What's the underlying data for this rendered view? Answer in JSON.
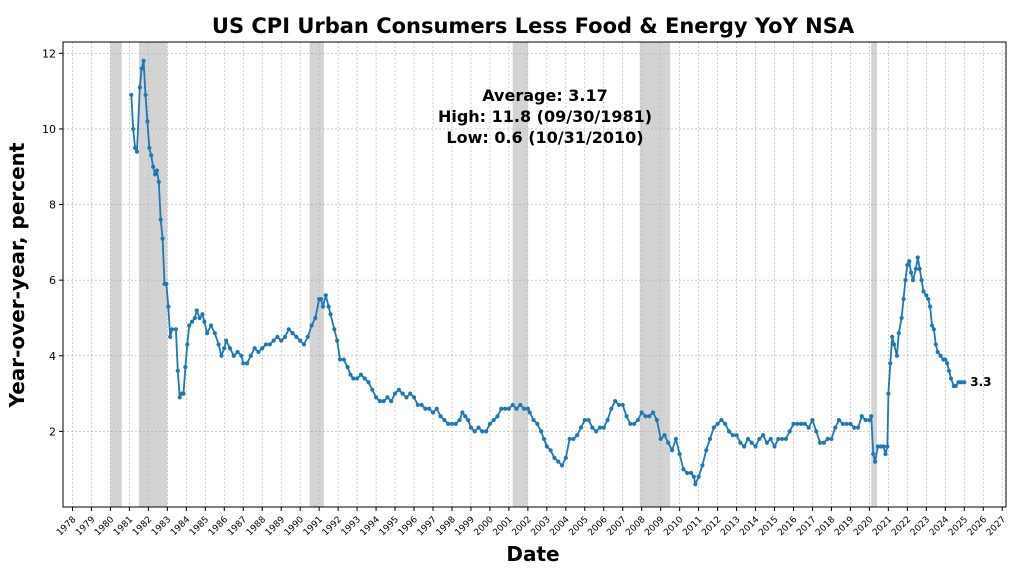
{
  "chart_data": {
    "type": "line",
    "title": "US CPI Urban Consumers Less Food & Energy YoY NSA",
    "xlabel": "Date",
    "ylabel": "Year-over-year, percent",
    "xlim": [
      1977.5,
      2027.2
    ],
    "ylim": [
      0,
      12.3
    ],
    "yticks": [
      2,
      4,
      6,
      8,
      10,
      12
    ],
    "xticks": [
      1978,
      1979,
      1980,
      1981,
      1982,
      1983,
      1984,
      1985,
      1986,
      1987,
      1988,
      1989,
      1990,
      1991,
      1992,
      1993,
      1994,
      1995,
      1996,
      1997,
      1998,
      1999,
      2000,
      2001,
      2002,
      2003,
      2004,
      2005,
      2006,
      2007,
      2008,
      2009,
      2010,
      2011,
      2012,
      2013,
      2014,
      2015,
      2016,
      2017,
      2018,
      2019,
      2020,
      2021,
      2022,
      2023,
      2024,
      2025,
      2026,
      2027
    ],
    "grid": true,
    "line_color": "#1f77b4",
    "recession_color": "#d3d3d3",
    "recessions": [
      [
        1980.0,
        1980.6
      ],
      [
        1981.5,
        1983.0
      ],
      [
        1990.5,
        1991.25
      ],
      [
        2001.2,
        2002.0
      ],
      [
        2007.9,
        2009.5
      ],
      [
        2020.1,
        2020.4
      ]
    ],
    "annotation": {
      "line1": "Average: 3.17",
      "line2": "High: 11.8 (09/30/1981)",
      "line3": "Low: 0.6 (10/31/2010)"
    },
    "last_value_label": "3.3",
    "series": [
      {
        "points": [
          [
            1981.1,
            10.9
          ],
          [
            1981.2,
            10.0
          ],
          [
            1981.3,
            9.5
          ],
          [
            1981.4,
            9.4
          ],
          [
            1981.55,
            11.1
          ],
          [
            1981.65,
            11.6
          ],
          [
            1981.75,
            11.8
          ],
          [
            1981.85,
            10.9
          ],
          [
            1981.95,
            10.2
          ],
          [
            1982.05,
            9.5
          ],
          [
            1982.15,
            9.3
          ],
          [
            1982.25,
            9.0
          ],
          [
            1982.35,
            8.8
          ],
          [
            1982.45,
            8.9
          ],
          [
            1982.55,
            8.6
          ],
          [
            1982.65,
            7.6
          ],
          [
            1982.75,
            7.1
          ],
          [
            1982.85,
            5.9
          ],
          [
            1982.95,
            5.9
          ],
          [
            1983.05,
            5.3
          ],
          [
            1983.15,
            4.5
          ],
          [
            1983.25,
            4.7
          ],
          [
            1983.45,
            4.7
          ],
          [
            1983.55,
            3.6
          ],
          [
            1983.65,
            2.9
          ],
          [
            1983.75,
            3.0
          ],
          [
            1983.85,
            3.0
          ],
          [
            1983.95,
            3.7
          ],
          [
            1984.05,
            4.3
          ],
          [
            1984.15,
            4.8
          ],
          [
            1984.3,
            4.9
          ],
          [
            1984.45,
            5.0
          ],
          [
            1984.55,
            5.2
          ],
          [
            1984.7,
            5.0
          ],
          [
            1984.85,
            5.1
          ],
          [
            1984.95,
            4.9
          ],
          [
            1985.1,
            4.6
          ],
          [
            1985.3,
            4.8
          ],
          [
            1985.5,
            4.6
          ],
          [
            1985.7,
            4.3
          ],
          [
            1985.85,
            4.0
          ],
          [
            1986.0,
            4.2
          ],
          [
            1986.1,
            4.4
          ],
          [
            1986.3,
            4.2
          ],
          [
            1986.5,
            4.0
          ],
          [
            1986.7,
            4.1
          ],
          [
            1986.9,
            4.0
          ],
          [
            1987.0,
            3.8
          ],
          [
            1987.2,
            3.8
          ],
          [
            1987.4,
            4.0
          ],
          [
            1987.6,
            4.2
          ],
          [
            1987.8,
            4.1
          ],
          [
            1988.0,
            4.2
          ],
          [
            1988.2,
            4.3
          ],
          [
            1988.4,
            4.3
          ],
          [
            1988.6,
            4.4
          ],
          [
            1988.8,
            4.5
          ],
          [
            1989.0,
            4.4
          ],
          [
            1989.2,
            4.5
          ],
          [
            1989.4,
            4.7
          ],
          [
            1989.6,
            4.6
          ],
          [
            1989.8,
            4.5
          ],
          [
            1990.0,
            4.4
          ],
          [
            1990.2,
            4.3
          ],
          [
            1990.4,
            4.5
          ],
          [
            1990.6,
            4.8
          ],
          [
            1990.8,
            5.0
          ],
          [
            1991.0,
            5.5
          ],
          [
            1991.1,
            5.5
          ],
          [
            1991.2,
            5.3
          ],
          [
            1991.35,
            5.6
          ],
          [
            1991.5,
            5.3
          ],
          [
            1991.6,
            5.1
          ],
          [
            1991.8,
            4.7
          ],
          [
            1991.95,
            4.4
          ],
          [
            1992.1,
            3.9
          ],
          [
            1992.3,
            3.9
          ],
          [
            1992.5,
            3.7
          ],
          [
            1992.65,
            3.5
          ],
          [
            1992.8,
            3.4
          ],
          [
            1993.0,
            3.4
          ],
          [
            1993.2,
            3.5
          ],
          [
            1993.4,
            3.4
          ],
          [
            1993.6,
            3.3
          ],
          [
            1993.8,
            3.1
          ],
          [
            1994.0,
            2.9
          ],
          [
            1994.2,
            2.8
          ],
          [
            1994.4,
            2.8
          ],
          [
            1994.6,
            2.9
          ],
          [
            1994.8,
            2.8
          ],
          [
            1995.0,
            3.0
          ],
          [
            1995.2,
            3.1
          ],
          [
            1995.4,
            3.0
          ],
          [
            1995.6,
            2.9
          ],
          [
            1995.8,
            3.0
          ],
          [
            1996.0,
            2.9
          ],
          [
            1996.2,
            2.7
          ],
          [
            1996.4,
            2.7
          ],
          [
            1996.6,
            2.6
          ],
          [
            1996.8,
            2.6
          ],
          [
            1997.0,
            2.5
          ],
          [
            1997.2,
            2.6
          ],
          [
            1997.4,
            2.4
          ],
          [
            1997.6,
            2.3
          ],
          [
            1997.8,
            2.2
          ],
          [
            1998.0,
            2.2
          ],
          [
            1998.2,
            2.2
          ],
          [
            1998.4,
            2.3
          ],
          [
            1998.55,
            2.5
          ],
          [
            1998.7,
            2.4
          ],
          [
            1998.85,
            2.3
          ],
          [
            1999.0,
            2.1
          ],
          [
            1999.2,
            2.0
          ],
          [
            1999.4,
            2.1
          ],
          [
            1999.6,
            2.0
          ],
          [
            1999.8,
            2.0
          ],
          [
            2000.0,
            2.2
          ],
          [
            2000.2,
            2.3
          ],
          [
            2000.4,
            2.4
          ],
          [
            2000.6,
            2.6
          ],
          [
            2000.8,
            2.6
          ],
          [
            2001.0,
            2.6
          ],
          [
            2001.2,
            2.7
          ],
          [
            2001.4,
            2.6
          ],
          [
            2001.6,
            2.7
          ],
          [
            2001.8,
            2.6
          ],
          [
            2002.0,
            2.6
          ],
          [
            2002.1,
            2.5
          ],
          [
            2002.3,
            2.3
          ],
          [
            2002.5,
            2.2
          ],
          [
            2002.7,
            2.0
          ],
          [
            2002.85,
            1.8
          ],
          [
            2003.0,
            1.6
          ],
          [
            2003.2,
            1.5
          ],
          [
            2003.4,
            1.3
          ],
          [
            2003.6,
            1.2
          ],
          [
            2003.8,
            1.1
          ],
          [
            2004.0,
            1.3
          ],
          [
            2004.2,
            1.8
          ],
          [
            2004.4,
            1.8
          ],
          [
            2004.6,
            1.9
          ],
          [
            2004.8,
            2.1
          ],
          [
            2005.0,
            2.3
          ],
          [
            2005.2,
            2.3
          ],
          [
            2005.4,
            2.1
          ],
          [
            2005.6,
            2.0
          ],
          [
            2005.8,
            2.1
          ],
          [
            2006.0,
            2.1
          ],
          [
            2006.2,
            2.3
          ],
          [
            2006.4,
            2.6
          ],
          [
            2006.6,
            2.8
          ],
          [
            2006.8,
            2.7
          ],
          [
            2007.0,
            2.7
          ],
          [
            2007.2,
            2.4
          ],
          [
            2007.4,
            2.2
          ],
          [
            2007.6,
            2.2
          ],
          [
            2007.8,
            2.3
          ],
          [
            2008.0,
            2.5
          ],
          [
            2008.2,
            2.4
          ],
          [
            2008.4,
            2.4
          ],
          [
            2008.6,
            2.5
          ],
          [
            2008.8,
            2.3
          ],
          [
            2009.0,
            1.8
          ],
          [
            2009.2,
            1.9
          ],
          [
            2009.4,
            1.7
          ],
          [
            2009.6,
            1.5
          ],
          [
            2009.8,
            1.8
          ],
          [
            2010.0,
            1.4
          ],
          [
            2010.2,
            1.0
          ],
          [
            2010.4,
            0.9
          ],
          [
            2010.6,
            0.9
          ],
          [
            2010.75,
            0.8
          ],
          [
            2010.83,
            0.6
          ],
          [
            2011.0,
            0.8
          ],
          [
            2011.2,
            1.1
          ],
          [
            2011.4,
            1.5
          ],
          [
            2011.6,
            1.8
          ],
          [
            2011.8,
            2.1
          ],
          [
            2012.0,
            2.2
          ],
          [
            2012.2,
            2.3
          ],
          [
            2012.4,
            2.2
          ],
          [
            2012.6,
            2.0
          ],
          [
            2012.8,
            1.9
          ],
          [
            2013.0,
            1.9
          ],
          [
            2013.2,
            1.7
          ],
          [
            2013.4,
            1.6
          ],
          [
            2013.6,
            1.8
          ],
          [
            2013.8,
            1.7
          ],
          [
            2014.0,
            1.6
          ],
          [
            2014.2,
            1.8
          ],
          [
            2014.4,
            1.9
          ],
          [
            2014.6,
            1.7
          ],
          [
            2014.8,
            1.8
          ],
          [
            2015.0,
            1.6
          ],
          [
            2015.2,
            1.8
          ],
          [
            2015.4,
            1.8
          ],
          [
            2015.6,
            1.8
          ],
          [
            2015.8,
            2.0
          ],
          [
            2016.0,
            2.2
          ],
          [
            2016.2,
            2.2
          ],
          [
            2016.4,
            2.2
          ],
          [
            2016.6,
            2.2
          ],
          [
            2016.8,
            2.1
          ],
          [
            2017.0,
            2.3
          ],
          [
            2017.2,
            2.0
          ],
          [
            2017.4,
            1.7
          ],
          [
            2017.6,
            1.7
          ],
          [
            2017.8,
            1.8
          ],
          [
            2018.0,
            1.8
          ],
          [
            2018.2,
            2.1
          ],
          [
            2018.4,
            2.3
          ],
          [
            2018.6,
            2.2
          ],
          [
            2018.8,
            2.2
          ],
          [
            2019.0,
            2.2
          ],
          [
            2019.2,
            2.1
          ],
          [
            2019.4,
            2.1
          ],
          [
            2019.6,
            2.4
          ],
          [
            2019.8,
            2.3
          ],
          [
            2020.0,
            2.3
          ],
          [
            2020.1,
            2.4
          ],
          [
            2020.2,
            1.4
          ],
          [
            2020.3,
            1.2
          ],
          [
            2020.45,
            1.6
          ],
          [
            2020.6,
            1.6
          ],
          [
            2020.75,
            1.6
          ],
          [
            2020.85,
            1.4
          ],
          [
            2020.95,
            1.6
          ],
          [
            2021.0,
            3.0
          ],
          [
            2021.1,
            3.8
          ],
          [
            2021.2,
            4.5
          ],
          [
            2021.3,
            4.3
          ],
          [
            2021.45,
            4.0
          ],
          [
            2021.55,
            4.6
          ],
          [
            2021.7,
            5.0
          ],
          [
            2021.8,
            5.5
          ],
          [
            2021.9,
            6.0
          ],
          [
            2022.0,
            6.4
          ],
          [
            2022.1,
            6.5
          ],
          [
            2022.2,
            6.2
          ],
          [
            2022.3,
            6.0
          ],
          [
            2022.45,
            6.3
          ],
          [
            2022.55,
            6.6
          ],
          [
            2022.65,
            6.3
          ],
          [
            2022.75,
            6.0
          ],
          [
            2022.85,
            5.7
          ],
          [
            2023.0,
            5.6
          ],
          [
            2023.1,
            5.5
          ],
          [
            2023.2,
            5.3
          ],
          [
            2023.3,
            4.8
          ],
          [
            2023.4,
            4.7
          ],
          [
            2023.5,
            4.3
          ],
          [
            2023.6,
            4.1
          ],
          [
            2023.75,
            4.0
          ],
          [
            2023.9,
            3.9
          ],
          [
            2024.0,
            3.9
          ],
          [
            2024.1,
            3.8
          ],
          [
            2024.2,
            3.6
          ],
          [
            2024.3,
            3.4
          ],
          [
            2024.45,
            3.2
          ],
          [
            2024.55,
            3.2
          ],
          [
            2024.7,
            3.3
          ],
          [
            2024.85,
            3.3
          ],
          [
            2025.0,
            3.3
          ]
        ]
      }
    ]
  }
}
